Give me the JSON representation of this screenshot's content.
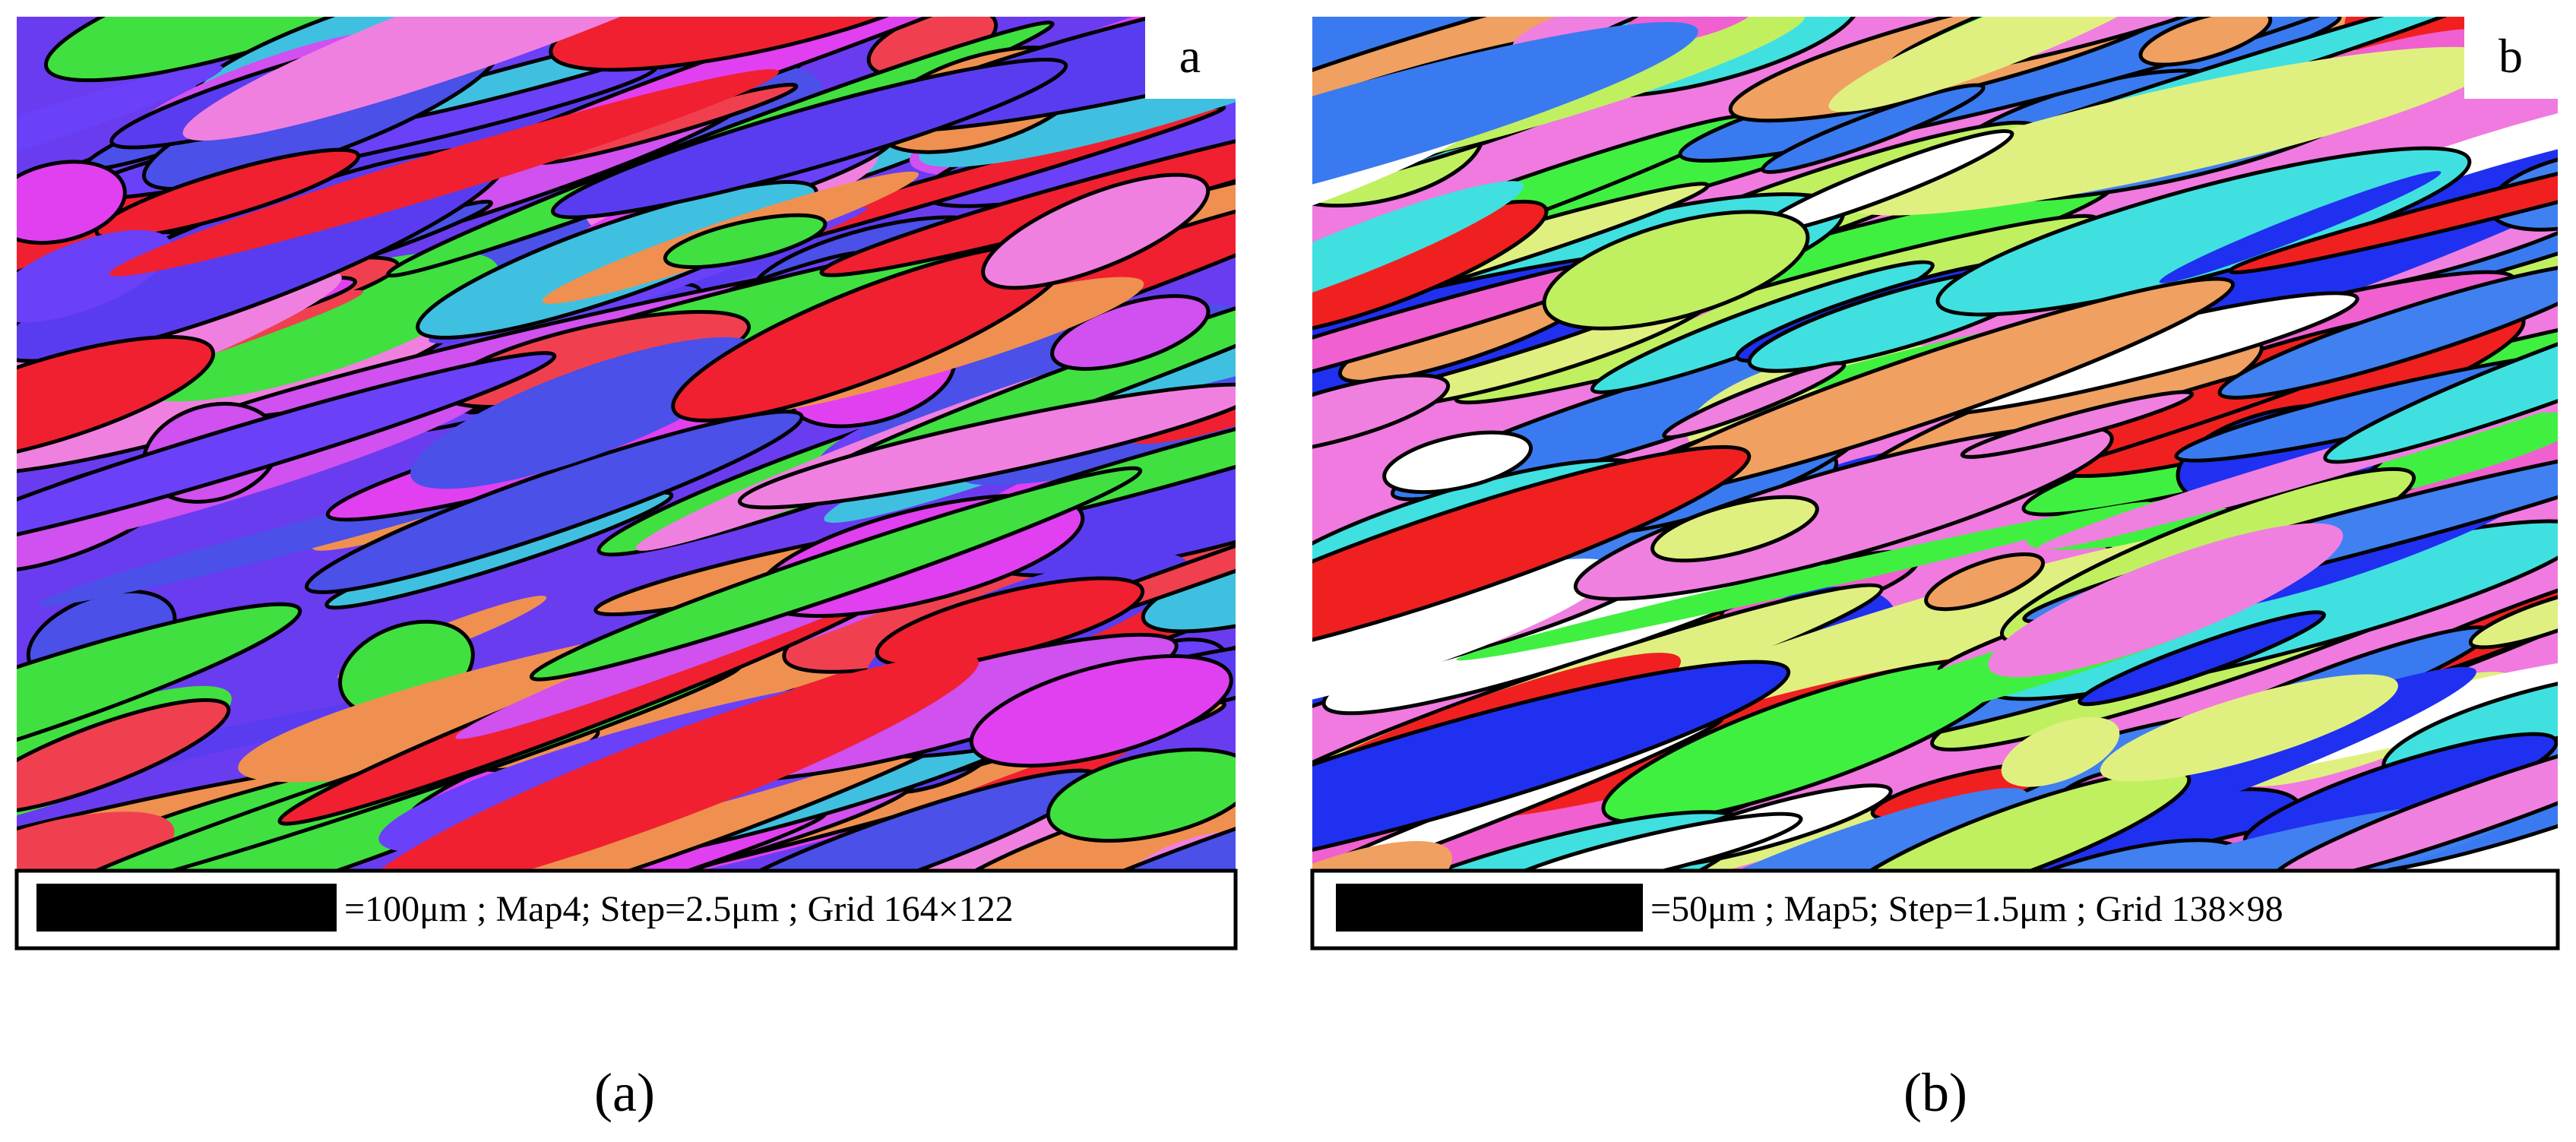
{
  "panels": [
    {
      "corner_label": "a",
      "caption": "=100μm ; Map4; Step=2.5μm ; Grid 164×122",
      "subcaption": "(a)"
    },
    {
      "corner_label": "b",
      "caption": "=50μm ; Map5; Step=1.5μm ; Grid 138×98",
      "subcaption": "(b)"
    }
  ]
}
